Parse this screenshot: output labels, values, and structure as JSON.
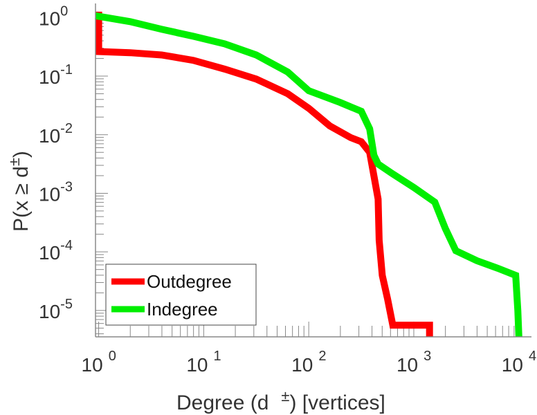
{
  "chart_data": {
    "type": "line",
    "scale": "log-log",
    "title": "",
    "xlabel": "Degree (d",
    "xlabel_superscript": "±",
    "xlabel_suffix": ") [vertices]",
    "ylabel": "P(x ≥ d",
    "ylabel_superscript": "±",
    "ylabel_suffix": ")",
    "xlim_log10": [
      -0.03,
      4.12
    ],
    "ylim_log10": [
      -5.45,
      0.24
    ],
    "x_ticks": [
      {
        "base": "10",
        "exp": "0",
        "log10": 0
      },
      {
        "base": "10",
        "exp": "1",
        "log10": 1
      },
      {
        "base": "10",
        "exp": "2",
        "log10": 2
      },
      {
        "base": "10",
        "exp": "3",
        "log10": 3
      },
      {
        "base": "10",
        "exp": "4",
        "log10": 4
      }
    ],
    "y_ticks": [
      {
        "base": "10",
        "exp": "0",
        "log10": 0
      },
      {
        "base": "10",
        "exp": "-1",
        "log10": -1
      },
      {
        "base": "10",
        "exp": "-2",
        "log10": -2
      },
      {
        "base": "10",
        "exp": "-3",
        "log10": -3
      },
      {
        "base": "10",
        "exp": "-4",
        "log10": -4
      },
      {
        "base": "10",
        "exp": "-5",
        "log10": -5
      }
    ],
    "legend": {
      "position": "bottom-left"
    },
    "series": [
      {
        "name": "Outdegree",
        "color": "#ff0000",
        "points_log10": [
          [
            0,
            0.1
          ],
          [
            0,
            -0.58
          ],
          [
            0.3,
            -0.6
          ],
          [
            0.6,
            -0.64
          ],
          [
            0.9,
            -0.73
          ],
          [
            1.2,
            -0.88
          ],
          [
            1.5,
            -1.05
          ],
          [
            1.8,
            -1.3
          ],
          [
            2.0,
            -1.55
          ],
          [
            2.2,
            -1.85
          ],
          [
            2.4,
            -2.05
          ],
          [
            2.5,
            -2.12
          ],
          [
            2.58,
            -2.3
          ],
          [
            2.62,
            -2.7
          ],
          [
            2.66,
            -3.1
          ],
          [
            2.67,
            -3.8
          ],
          [
            2.7,
            -4.4
          ],
          [
            2.75,
            -4.8
          ],
          [
            2.8,
            -5.25
          ],
          [
            3.0,
            -5.25
          ],
          [
            3.15,
            -5.25
          ],
          [
            3.15,
            -5.45
          ]
        ]
      },
      {
        "name": "Indegree",
        "color": "#00ee00",
        "points_log10": [
          [
            -0.03,
            0.03
          ],
          [
            0.3,
            -0.07
          ],
          [
            0.6,
            -0.2
          ],
          [
            0.9,
            -0.32
          ],
          [
            1.2,
            -0.45
          ],
          [
            1.5,
            -0.64
          ],
          [
            1.8,
            -0.93
          ],
          [
            2.0,
            -1.25
          ],
          [
            2.3,
            -1.45
          ],
          [
            2.5,
            -1.6
          ],
          [
            2.58,
            -1.9
          ],
          [
            2.62,
            -2.35
          ],
          [
            2.66,
            -2.5
          ],
          [
            2.8,
            -2.67
          ],
          [
            3.0,
            -2.9
          ],
          [
            3.2,
            -3.15
          ],
          [
            3.3,
            -3.6
          ],
          [
            3.4,
            -3.98
          ],
          [
            3.6,
            -4.15
          ],
          [
            3.8,
            -4.28
          ],
          [
            3.97,
            -4.4
          ],
          [
            3.99,
            -5.0
          ],
          [
            4.0,
            -5.45
          ]
        ]
      }
    ]
  }
}
